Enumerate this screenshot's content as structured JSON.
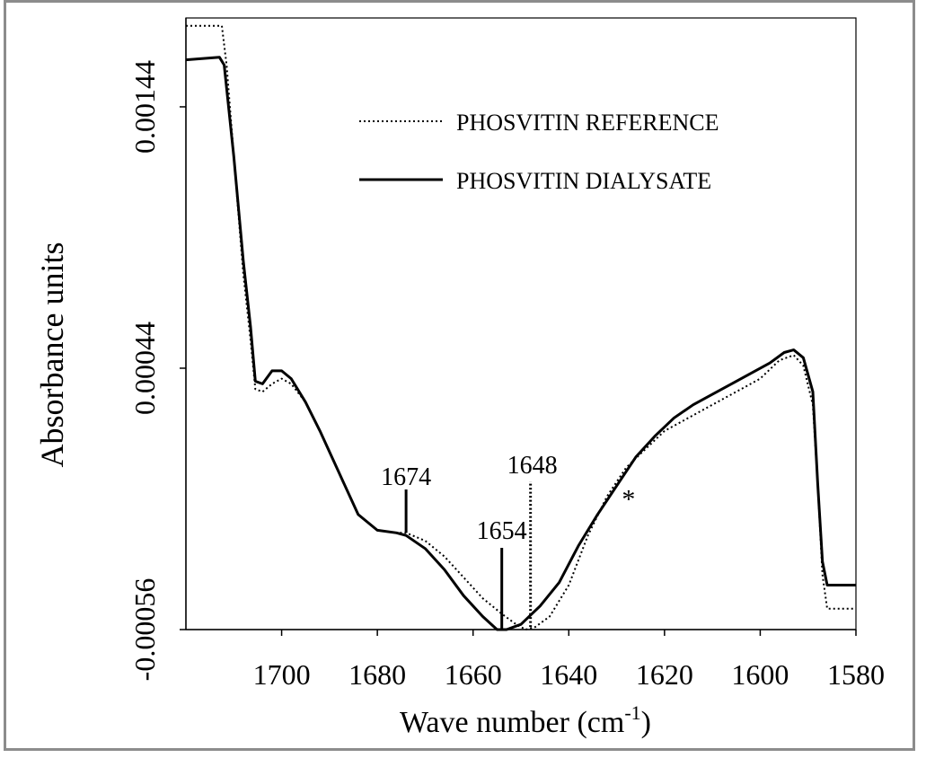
{
  "chart_data": {
    "type": "line",
    "title": "",
    "xlabel": "Wave number (cm",
    "xlabel_sup": "-1",
    "xlabel_close": ")",
    "ylabel": "Absorbance units",
    "x_reversed": true,
    "xlim": [
      1720,
      1580
    ],
    "ylim": [
      -0.00056,
      0.00178
    ],
    "x_ticks": [
      1700,
      1680,
      1660,
      1640,
      1620,
      1600,
      1580
    ],
    "x_tick_labels": [
      "1700",
      "1680",
      "1660",
      "1640",
      "1620",
      "1600",
      "1580"
    ],
    "y_ticks": [
      0.00144,
      0.00044,
      -0.00056
    ],
    "y_tick_labels": [
      "0.00144",
      "0.00044",
      "-0.00056"
    ],
    "grid": false,
    "legend_position": "top-right",
    "series": [
      {
        "name": "PHOSVITIN REFERENCE",
        "style": "dotted",
        "color": "#000000",
        "points": [
          [
            1720,
            0.00175
          ],
          [
            1712.5,
            0.00175
          ],
          [
            1711.5,
            0.0016
          ],
          [
            1710,
            0.00125
          ],
          [
            1708,
            0.0008
          ],
          [
            1706.5,
            0.00055
          ],
          [
            1705.5,
            0.00036
          ],
          [
            1704,
            0.00035
          ],
          [
            1702,
            0.00038
          ],
          [
            1700,
            0.0004
          ],
          [
            1698,
            0.00038
          ],
          [
            1695,
            0.00031
          ],
          [
            1692,
            0.0002
          ],
          [
            1688,
            4e-05
          ],
          [
            1684,
            -0.00012
          ],
          [
            1680,
            -0.00018
          ],
          [
            1676,
            -0.00019
          ],
          [
            1674,
            -0.00019
          ],
          [
            1670,
            -0.00022
          ],
          [
            1666,
            -0.00028
          ],
          [
            1662,
            -0.00036
          ],
          [
            1658,
            -0.00044
          ],
          [
            1654,
            -0.0005
          ],
          [
            1651,
            -0.00054
          ],
          [
            1649,
            -0.00056
          ],
          [
            1647,
            -0.00055
          ],
          [
            1644,
            -0.00051
          ],
          [
            1640,
            -0.00039
          ],
          [
            1636,
            -0.0002
          ],
          [
            1632,
            -5e-05
          ],
          [
            1628,
            6e-05
          ],
          [
            1624,
            0.00013
          ],
          [
            1620,
            0.0002
          ],
          [
            1616,
            0.00024
          ],
          [
            1612,
            0.00028
          ],
          [
            1608,
            0.00032
          ],
          [
            1604,
            0.00036
          ],
          [
            1600,
            0.0004
          ],
          [
            1596,
            0.00047
          ],
          [
            1593,
            0.00049
          ],
          [
            1591,
            0.00045
          ],
          [
            1589,
            0.0003
          ],
          [
            1588,
            0.0
          ],
          [
            1587,
            -0.00035
          ],
          [
            1586,
            -0.00048
          ],
          [
            1580,
            -0.00048
          ]
        ]
      },
      {
        "name": "PHOSVITIN DIALYSATE",
        "style": "solid",
        "color": "#000000",
        "points": [
          [
            1720,
            0.00162
          ],
          [
            1713,
            0.00163
          ],
          [
            1712,
            0.0016
          ],
          [
            1710,
            0.00125
          ],
          [
            1708,
            0.00085
          ],
          [
            1706.5,
            0.0006
          ],
          [
            1705.5,
            0.00039
          ],
          [
            1704,
            0.00038
          ],
          [
            1702,
            0.00043
          ],
          [
            1700,
            0.00043
          ],
          [
            1698,
            0.0004
          ],
          [
            1695,
            0.00031
          ],
          [
            1692,
            0.0002
          ],
          [
            1688,
            4e-05
          ],
          [
            1684,
            -0.00012
          ],
          [
            1680,
            -0.00018
          ],
          [
            1676,
            -0.00019
          ],
          [
            1674,
            -0.0002
          ],
          [
            1670,
            -0.00025
          ],
          [
            1666,
            -0.00033
          ],
          [
            1662,
            -0.00043
          ],
          [
            1658,
            -0.00051
          ],
          [
            1655,
            -0.00056
          ],
          [
            1653,
            -0.00056
          ],
          [
            1650,
            -0.00054
          ],
          [
            1646,
            -0.00047
          ],
          [
            1642,
            -0.00038
          ],
          [
            1638,
            -0.00024
          ],
          [
            1634,
            -0.00012
          ],
          [
            1630,
            -1e-05
          ],
          [
            1626,
            0.0001
          ],
          [
            1622,
            0.00018
          ],
          [
            1618,
            0.00025
          ],
          [
            1614,
            0.0003
          ],
          [
            1610,
            0.00034
          ],
          [
            1606,
            0.00038
          ],
          [
            1602,
            0.00042
          ],
          [
            1598,
            0.00046
          ],
          [
            1595,
            0.0005
          ],
          [
            1593,
            0.00051
          ],
          [
            1591,
            0.00048
          ],
          [
            1589,
            0.00035
          ],
          [
            1588,
            0.0
          ],
          [
            1587,
            -0.0003
          ],
          [
            1586,
            -0.00039
          ],
          [
            1580,
            -0.00039
          ]
        ]
      }
    ],
    "annotations": [
      {
        "label": "1674",
        "x": 1674,
        "y": -0.00019,
        "line_style": "solid"
      },
      {
        "label": "1654",
        "x": 1654,
        "y": -0.00056,
        "line_style": "solid"
      },
      {
        "label": "1648",
        "x": 1648,
        "y": -0.00055,
        "line_style": "dotted"
      },
      {
        "label": "*",
        "x": 1629,
        "y": -4e-05,
        "line_style": "none"
      }
    ]
  }
}
